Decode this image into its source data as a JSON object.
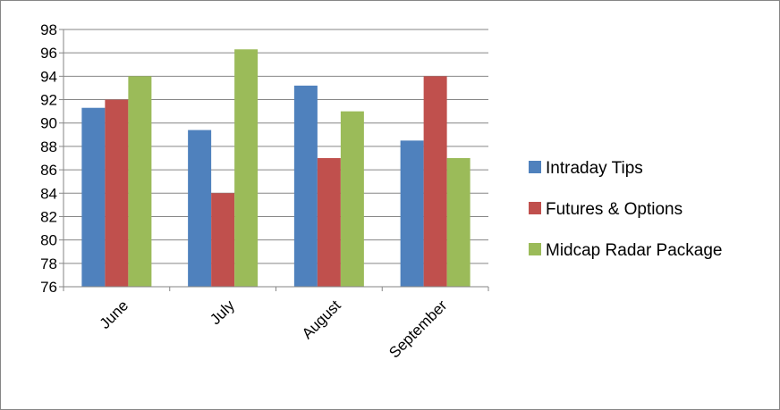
{
  "chart_data": {
    "type": "bar",
    "title": "",
    "xlabel": "",
    "ylabel": "",
    "categories": [
      "June",
      "July",
      "August",
      "September"
    ],
    "series": [
      {
        "name": "Intraday Tips",
        "color": "#4F81BD",
        "values": [
          91.3,
          89.4,
          93.2,
          88.5
        ]
      },
      {
        "name": "Futures & Options",
        "color": "#C0504D",
        "values": [
          92,
          84,
          87,
          94
        ]
      },
      {
        "name": "Midcap Radar Package",
        "color": "#9BBB59",
        "values": [
          94,
          96.3,
          91,
          87
        ]
      }
    ],
    "ylim": [
      76,
      98
    ],
    "ytick_step": 2,
    "grid": true,
    "legend_position": "right"
  }
}
